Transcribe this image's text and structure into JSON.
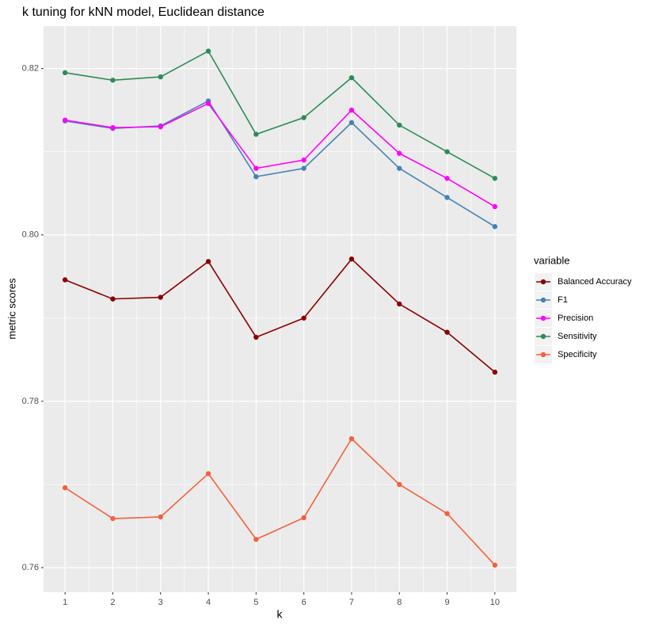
{
  "chart_data": {
    "type": "line",
    "title": "k tuning for kNN model, Euclidean distance",
    "x_label": "k",
    "y_label": "metric scores",
    "legend_title": "variable",
    "legend_position": "right",
    "grid": true,
    "x": [
      1,
      2,
      3,
      4,
      5,
      6,
      7,
      8,
      9,
      10
    ],
    "xlim": [
      0.55,
      10.45
    ],
    "xticks": [
      1,
      2,
      3,
      4,
      5,
      6,
      7,
      8,
      9,
      10
    ],
    "ylim": [
      0.75705,
      0.8251
    ],
    "yticks": [
      0.76,
      0.78,
      {
        "value": 0.8,
        "label": "0.80"
      },
      0.82
    ],
    "series": [
      {
        "name": "Balanced Accuracy",
        "color": "#8b0000",
        "values": [
          0.7946,
          0.7923,
          0.7925,
          0.7968,
          0.7877,
          0.79,
          0.7971,
          0.7917,
          0.7883,
          0.7835
        ]
      },
      {
        "name": "F1",
        "color": "#4682b4",
        "values": [
          0.8137,
          0.8128,
          0.8131,
          0.8161,
          0.807,
          0.808,
          0.8135,
          0.808,
          0.8045,
          0.801
        ]
      },
      {
        "name": "Precision",
        "color": "#ff00ff",
        "values": [
          0.8138,
          0.8129,
          0.813,
          0.8158,
          0.808,
          0.809,
          0.815,
          0.8098,
          0.8068,
          0.8034
        ]
      },
      {
        "name": "Sensitivity",
        "color": "#2e8b57",
        "values": [
          0.8195,
          0.8186,
          0.819,
          0.8221,
          0.8121,
          0.8141,
          0.8189,
          0.8132,
          0.81,
          0.8068
        ]
      },
      {
        "name": "Specificity",
        "color": "#f4603e",
        "values": [
          0.7696,
          0.7659,
          0.7661,
          0.7713,
          0.7634,
          0.766,
          0.7755,
          0.77,
          0.7665,
          0.7603
        ]
      }
    ]
  }
}
